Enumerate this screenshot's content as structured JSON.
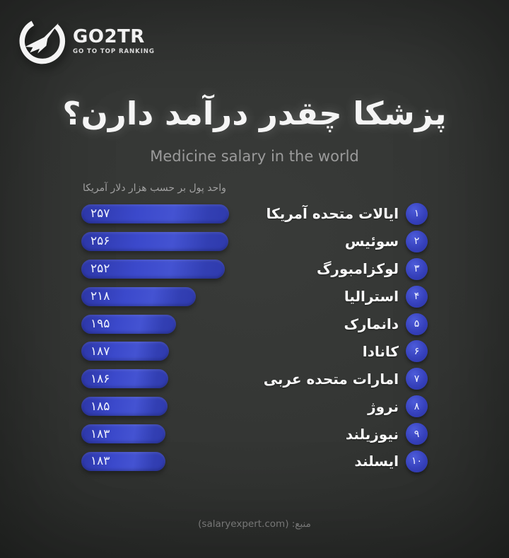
{
  "logo": {
    "brand": "GO2TR",
    "tagline": "GO TO TOP RANKING",
    "icon": "go2tr-plane-icon"
  },
  "header": {
    "title": "پزشکا چقدر درآمد دارن؟",
    "subtitle": "Medicine salary in the world"
  },
  "chart_data": {
    "type": "bar",
    "orientation": "horizontal",
    "title": "پزشکا چقدر درآمد دارن؟",
    "subtitle": "Medicine salary in the world",
    "unit_note": "واحد پول بر حسب هزار دلار آمریکا",
    "categories": [
      "ایالات متحده آمریکا",
      "سوئیس",
      "لوکزامبورگ",
      "استرالیا",
      "دانمارک",
      "کانادا",
      "امارات متحده عربی",
      "نروژ",
      "نیوزیلند",
      "ایسلند"
    ],
    "values": [
      257,
      256,
      252,
      218,
      195,
      187,
      186,
      185,
      183,
      183
    ],
    "value_labels_fa": [
      "۲۵۷",
      "۲۵۶",
      "۲۵۲",
      "۲۱۸",
      "۱۹۵",
      "۱۸۷",
      "۱۸۶",
      "۱۸۵",
      "۱۸۳",
      "۱۸۳"
    ],
    "rank_labels_fa": [
      "۱",
      "۲",
      "۳",
      "۴",
      "۵",
      "۶",
      "۷",
      "۸",
      "۹",
      "۱۰"
    ],
    "legend": null,
    "grid": false,
    "bar_color": "#3b49cb"
  },
  "footer": {
    "source": "منبع: (salaryexpert.com)"
  },
  "colors": {
    "background": "#343634",
    "bar_blue": "#3b49cb",
    "bar_blue_dark": "#2c36a6",
    "badge_blue": "#3641bc",
    "title_text": "#f5f5f5",
    "subtitle_text": "#9b9b9b",
    "muted_text": "#a0a0a0",
    "value_text": "#edf0fc"
  }
}
